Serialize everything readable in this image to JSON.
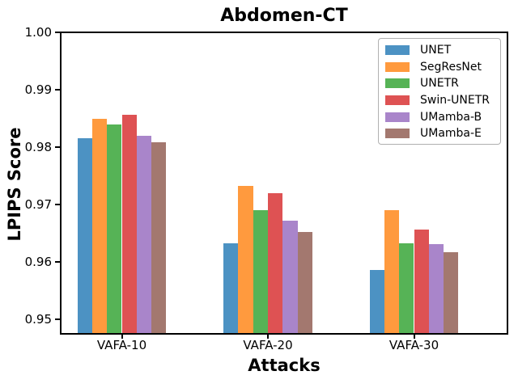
{
  "chart_data": {
    "type": "bar",
    "title": "Abdomen-CT",
    "xlabel": "Attacks",
    "ylabel": "LPIPS Score",
    "categories": [
      "VAFA-10",
      "VAFA-20",
      "VAFA-30"
    ],
    "series": [
      {
        "name": "UNET",
        "color": "#4C92C3",
        "values": [
          0.9815,
          0.9633,
          0.9586
        ]
      },
      {
        "name": "SegResNet",
        "color": "#FF9A3E",
        "values": [
          0.985,
          0.9733,
          0.969
        ]
      },
      {
        "name": "UNETR",
        "color": "#56B356",
        "values": [
          0.984,
          0.969,
          0.9633
        ]
      },
      {
        "name": "Swin-UNETR",
        "color": "#DE5253",
        "values": [
          0.9856,
          0.972,
          0.9656
        ]
      },
      {
        "name": "UMamba-B",
        "color": "#A985CA",
        "values": [
          0.982,
          0.9672,
          0.9631
        ]
      },
      {
        "name": "UMamba-E",
        "color": "#A3786F",
        "values": [
          0.9809,
          0.9653,
          0.9617
        ]
      }
    ],
    "ylim": [
      0.9475,
      1.0
    ],
    "yticks": [
      0.95,
      0.96,
      0.97,
      0.98,
      0.99,
      1.0
    ],
    "ytick_labels": [
      "0.95",
      "0.96",
      "0.97",
      "0.98",
      "0.99",
      "1.00"
    ],
    "grid": false,
    "legend_position": "upper right",
    "axis_color": "#000000",
    "background_color": "#ffffff"
  }
}
